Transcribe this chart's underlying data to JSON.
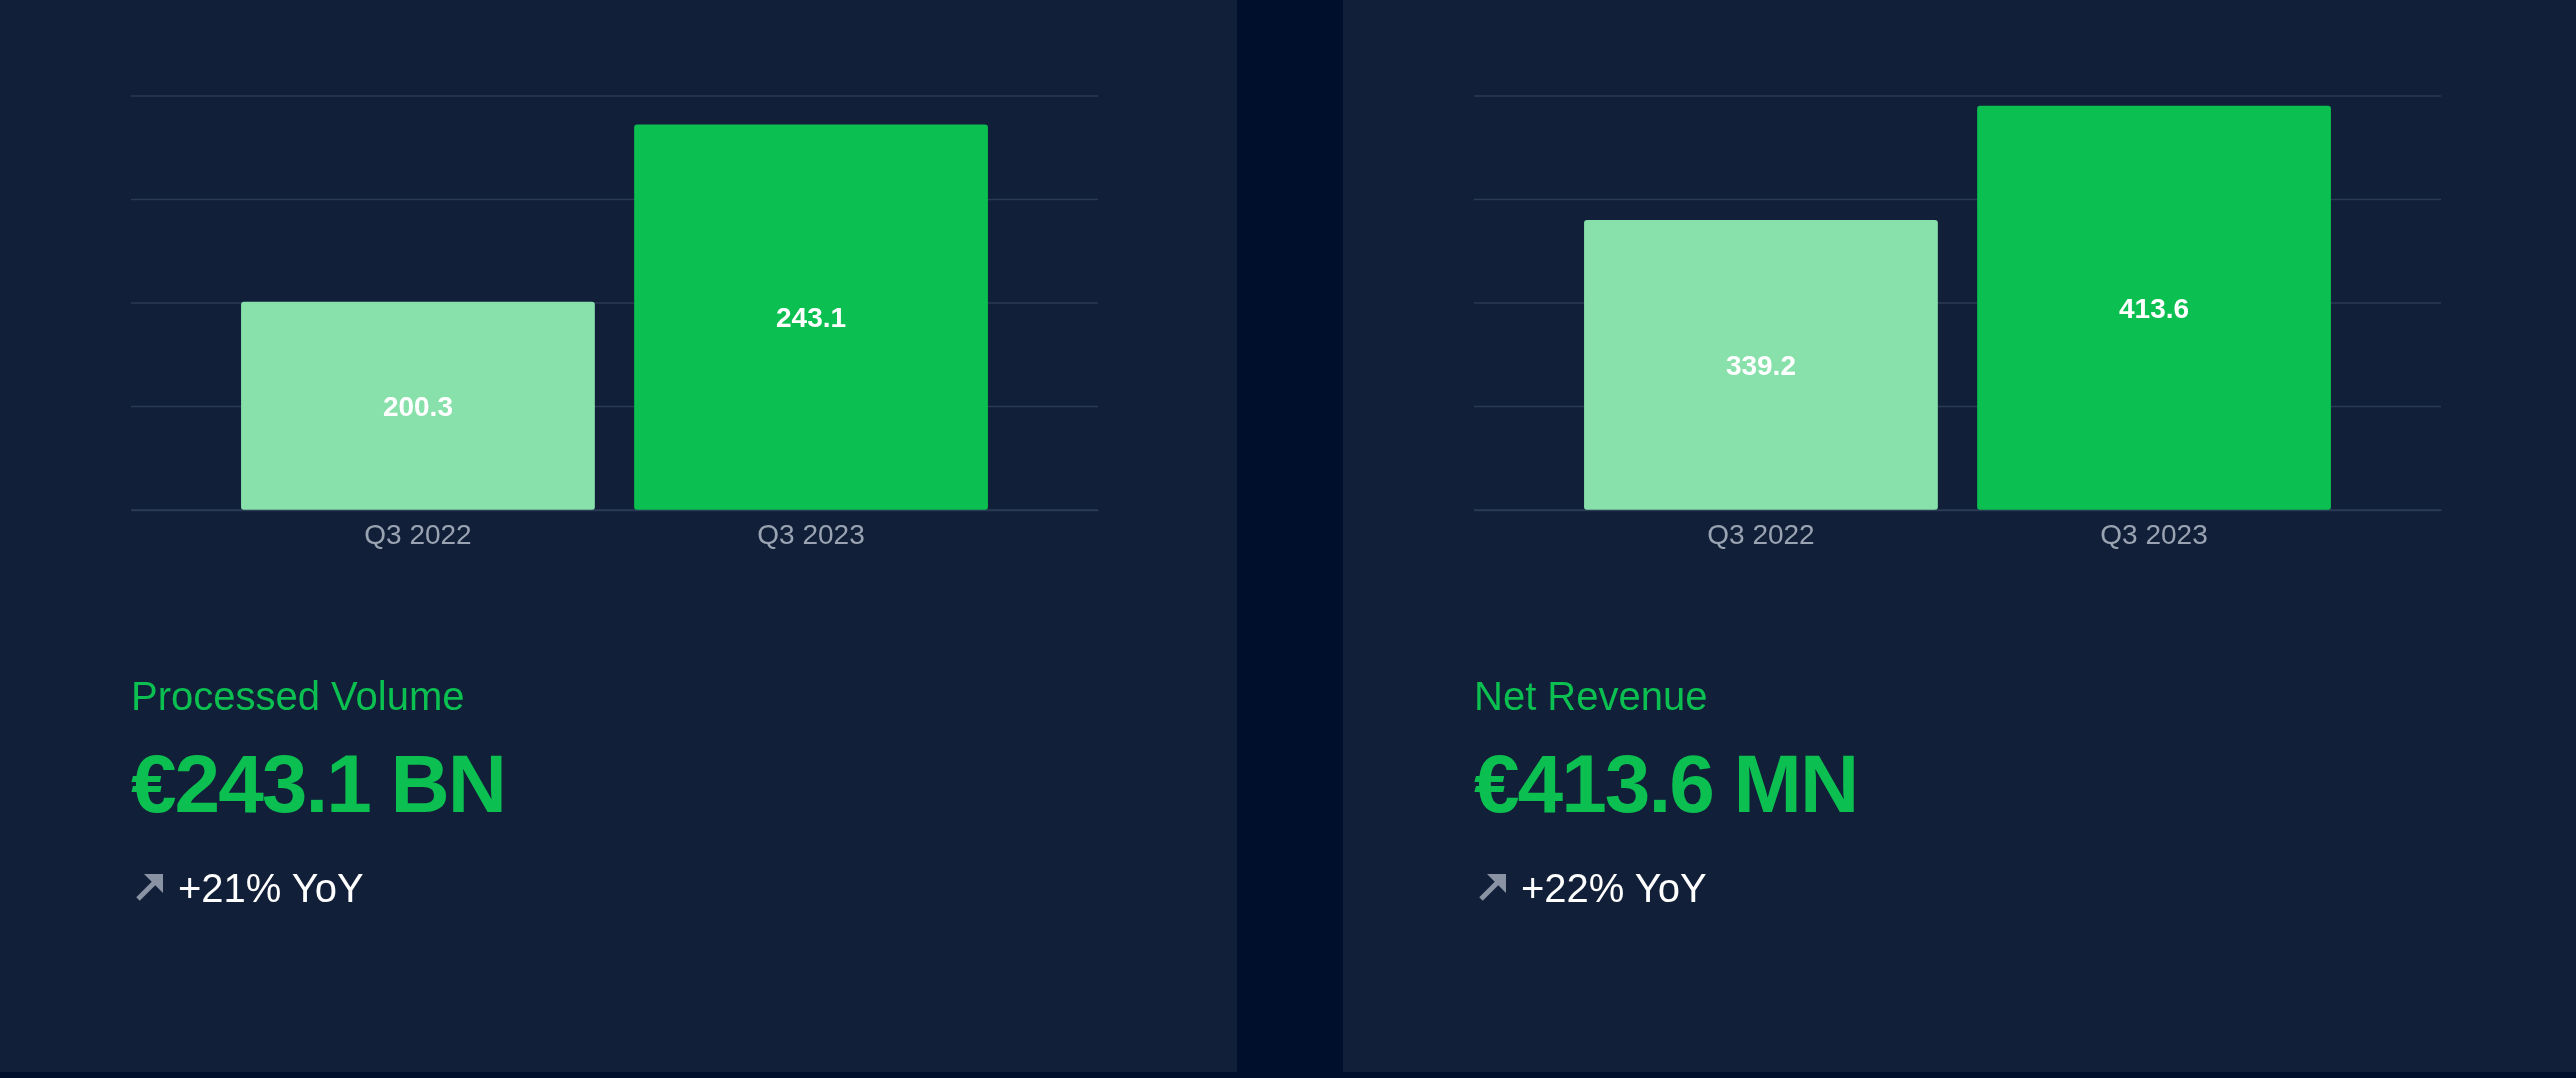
{
  "chart_data": [
    {
      "type": "bar",
      "categories": [
        "Q3 2022",
        "Q3 2023"
      ],
      "values": [
        200.3,
        243.1
      ],
      "colors": [
        "#88e0aa",
        "#0bbf50"
      ],
      "ylim": [
        150,
        250
      ],
      "yticks": [
        {
          "value": 150,
          "label": null
        },
        {
          "value": 175,
          "label": null
        },
        {
          "value": 200,
          "label": null
        },
        {
          "value": 225,
          "label": null
        },
        {
          "value": 250,
          "label": null
        }
      ],
      "grid": "y",
      "data_labels": true,
      "tick_labels": "x",
      "annotations": [
        "Processed Volume",
        "€243.1 BN",
        "+21% YoY"
      ]
    },
    {
      "type": "bar",
      "categories": [
        "Q3 2022",
        "Q3 2023"
      ],
      "values": [
        339.2,
        413.6
      ],
      "colors": [
        "#88e0aa",
        "#0bbf50"
      ],
      "ylim": [
        150,
        420
      ],
      "yticks": [
        {
          "value": 150,
          "label": null
        },
        {
          "value": 217.5,
          "label": null
        },
        {
          "value": 285,
          "label": null
        },
        {
          "value": 352.5,
          "label": null
        },
        {
          "value": 420,
          "label": null
        }
      ],
      "grid": "y",
      "data_labels": true,
      "tick_labels": "x",
      "annotations": [
        "Net Revenue",
        "€413.6 MN",
        "+22% YoY"
      ]
    }
  ]
}
